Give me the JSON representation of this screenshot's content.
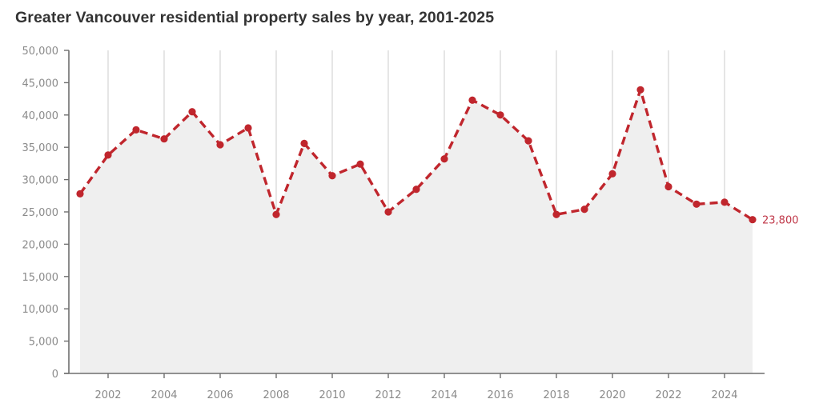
{
  "chart_data": {
    "type": "line",
    "title": "Greater Vancouver residential property sales by year, 2001-2025",
    "xlabel": "",
    "ylabel": "",
    "x": [
      2001,
      2002,
      2003,
      2004,
      2005,
      2006,
      2007,
      2008,
      2009,
      2010,
      2011,
      2012,
      2013,
      2014,
      2015,
      2016,
      2017,
      2018,
      2019,
      2020,
      2021,
      2022,
      2023,
      2024,
      2025
    ],
    "series": [
      {
        "name": "Residential property sales",
        "values": [
          27800,
          33800,
          37700,
          36300,
          40500,
          35400,
          38000,
          24600,
          35600,
          30600,
          32400,
          25000,
          28500,
          33200,
          42300,
          40000,
          36000,
          24600,
          25400,
          30900,
          43900,
          28900,
          26200,
          26500,
          23800
        ],
        "style": "dashed line with markers, filled area"
      }
    ],
    "xlim": [
      2000.6,
      2026
    ],
    "ylim": [
      0,
      50000
    ],
    "x_ticks": [
      2002,
      2004,
      2006,
      2008,
      2010,
      2012,
      2014,
      2016,
      2018,
      2020,
      2022,
      2024
    ],
    "x_tick_labels": [
      "2002",
      "2004",
      "2006",
      "2008",
      "2010",
      "2012",
      "2014",
      "2016",
      "2018",
      "2020",
      "2022",
      "2024"
    ],
    "y_ticks": [
      0,
      5000,
      10000,
      15000,
      20000,
      25000,
      30000,
      35000,
      40000,
      45000,
      50000
    ],
    "y_tick_labels": [
      "0",
      "5,000",
      "10,000",
      "15,000",
      "20,000",
      "25,000",
      "30,000",
      "35,000",
      "40,000",
      "45,000",
      "50,000"
    ],
    "annotations": [
      {
        "x": 2025,
        "y": 23800,
        "text": "23,800"
      }
    ],
    "grid": "vertical lines at x ticks",
    "legend": "none",
    "colors": {
      "line": "#c0262d",
      "label": "#c0394a",
      "area": "#efefef",
      "grid": "#d4d4d4",
      "axis": "#6e6e6e"
    }
  }
}
